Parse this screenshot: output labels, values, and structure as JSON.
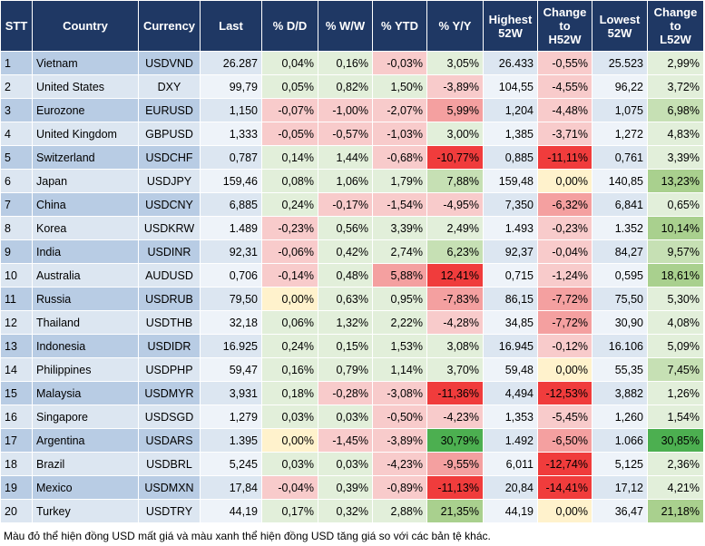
{
  "table": {
    "headers": [
      "STT",
      "Country",
      "Currency",
      "Last",
      "% D/D",
      "% W/W",
      "% YTD",
      "% Y/Y",
      "Highest\n52W",
      "Change\nto\nH52W",
      "Lowest\n52W",
      "Change\nto\nL52W"
    ],
    "rows": [
      [
        "1",
        "Vietnam",
        "USDVND",
        "26.287",
        "0,04%",
        "0,16%",
        "-0,03%",
        "3,05%",
        "26.433",
        "-0,55%",
        "25.523",
        "2,99%"
      ],
      [
        "2",
        "United States",
        "DXY",
        "99,79",
        "0,05%",
        "0,82%",
        "1,50%",
        "-3,89%",
        "104,55",
        "-4,55%",
        "96,22",
        "3,72%"
      ],
      [
        "3",
        "Eurozone",
        "EURUSD",
        "1,150",
        "-0,07%",
        "-1,00%",
        "-2,07%",
        "5,99%",
        "1,204",
        "-4,48%",
        "1,075",
        "6,98%"
      ],
      [
        "4",
        "United Kingdom",
        "GBPUSD",
        "1,333",
        "-0,05%",
        "-0,57%",
        "-1,03%",
        "3,00%",
        "1,385",
        "-3,71%",
        "1,272",
        "4,83%"
      ],
      [
        "5",
        "Switzerland",
        "USDCHF",
        "0,787",
        "0,14%",
        "1,44%",
        "-0,68%",
        "-10,77%",
        "0,885",
        "-11,11%",
        "0,761",
        "3,39%"
      ],
      [
        "6",
        "Japan",
        "USDJPY",
        "159,46",
        "0,08%",
        "1,06%",
        "1,79%",
        "7,88%",
        "159,48",
        "0,00%",
        "140,85",
        "13,23%"
      ],
      [
        "7",
        "China",
        "USDCNY",
        "6,885",
        "0,24%",
        "-0,17%",
        "-1,54%",
        "-4,95%",
        "7,350",
        "-6,32%",
        "6,841",
        "0,65%"
      ],
      [
        "8",
        "Korea",
        "USDKRW",
        "1.489",
        "-0,23%",
        "0,56%",
        "3,39%",
        "2,49%",
        "1.493",
        "-0,23%",
        "1.352",
        "10,14%"
      ],
      [
        "9",
        "India",
        "USDINR",
        "92,31",
        "-0,06%",
        "0,42%",
        "2,74%",
        "6,23%",
        "92,37",
        "-0,04%",
        "84,27",
        "9,57%"
      ],
      [
        "10",
        "Australia",
        "AUDUSD",
        "0,706",
        "-0,14%",
        "0,48%",
        "5,88%",
        "12,41%",
        "0,715",
        "-1,24%",
        "0,595",
        "18,61%"
      ],
      [
        "11",
        "Russia",
        "USDRUB",
        "79,50",
        "0,00%",
        "0,63%",
        "0,95%",
        "-7,83%",
        "86,15",
        "-7,72%",
        "75,50",
        "5,30%"
      ],
      [
        "12",
        "Thailand",
        "USDTHB",
        "32,18",
        "0,06%",
        "1,32%",
        "2,22%",
        "-4,28%",
        "34,85",
        "-7,72%",
        "30,90",
        "4,08%"
      ],
      [
        "13",
        "Indonesia",
        "USDIDR",
        "16.925",
        "0,24%",
        "0,15%",
        "1,53%",
        "3,08%",
        "16.945",
        "-0,12%",
        "16.106",
        "5,09%"
      ],
      [
        "14",
        "Philippines",
        "USDPHP",
        "59,47",
        "0,16%",
        "0,79%",
        "1,14%",
        "3,70%",
        "59,48",
        "0,00%",
        "55,35",
        "7,45%"
      ],
      [
        "15",
        "Malaysia",
        "USDMYR",
        "3,931",
        "0,18%",
        "-0,28%",
        "-3,08%",
        "-11,36%",
        "4,494",
        "-12,53%",
        "3,882",
        "1,26%"
      ],
      [
        "16",
        "Singapore",
        "USDSGD",
        "1,279",
        "0,03%",
        "0,03%",
        "-0,50%",
        "-4,23%",
        "1,353",
        "-5,45%",
        "1,260",
        "1,54%"
      ],
      [
        "17",
        "Argentina",
        "USDARS",
        "1.395",
        "0,00%",
        "-1,45%",
        "-3,89%",
        "30,79%",
        "1.492",
        "-6,50%",
        "1.066",
        "30,85%"
      ],
      [
        "18",
        "Brazil",
        "USDBRL",
        "5,245",
        "0,03%",
        "0,03%",
        "-4,23%",
        "-9,55%",
        "6,011",
        "-12,74%",
        "5,125",
        "2,36%"
      ],
      [
        "19",
        "Mexico",
        "USDMXN",
        "17,84",
        "-0,04%",
        "0,39%",
        "-0,89%",
        "-11,13%",
        "20,84",
        "-14,41%",
        "17,12",
        "4,21%"
      ],
      [
        "20",
        "Turkey",
        "USDTRY",
        "44,19",
        "0,17%",
        "0,32%",
        "2,88%",
        "21,35%",
        "44,19",
        "0,00%",
        "36,47",
        "21,18%"
      ]
    ],
    "cell_colors": [
      [
        null,
        null,
        null,
        null,
        "#e2efda",
        "#e2efda",
        "#f8cbcb",
        "#e2efda",
        null,
        "#f8cbcb",
        null,
        "#e2efda"
      ],
      [
        null,
        null,
        null,
        null,
        "#e2efda",
        "#e2efda",
        "#e2efda",
        "#f8cbcb",
        null,
        "#f8cbcb",
        null,
        "#e2efda"
      ],
      [
        null,
        null,
        null,
        null,
        "#f8cbcb",
        "#f8cbcb",
        "#f8cbcb",
        "#f4a0a0",
        null,
        "#f8cbcb",
        null,
        "#c6e0b4"
      ],
      [
        null,
        null,
        null,
        null,
        "#f8cbcb",
        "#f8cbcb",
        "#f8cbcb",
        "#e2efda",
        null,
        "#f8cbcb",
        null,
        "#e2efda"
      ],
      [
        null,
        null,
        null,
        null,
        "#e2efda",
        "#e2efda",
        "#f8cbcb",
        "#f03c3c",
        null,
        "#f03c3c",
        null,
        "#e2efda"
      ],
      [
        null,
        null,
        null,
        null,
        "#e2efda",
        "#e2efda",
        "#e2efda",
        "#c6e0b4",
        null,
        "#fff2cc",
        null,
        "#a9d08e"
      ],
      [
        null,
        null,
        null,
        null,
        "#e2efda",
        "#f8cbcb",
        "#f8cbcb",
        "#f8cbcb",
        null,
        "#f4a0a0",
        null,
        "#e2efda"
      ],
      [
        null,
        null,
        null,
        null,
        "#f8cbcb",
        "#e2efda",
        "#e2efda",
        "#e2efda",
        null,
        "#f8cbcb",
        null,
        "#a9d08e"
      ],
      [
        null,
        null,
        null,
        null,
        "#f8cbcb",
        "#e2efda",
        "#e2efda",
        "#c6e0b4",
        null,
        "#f8cbcb",
        null,
        "#c6e0b4"
      ],
      [
        null,
        null,
        null,
        null,
        "#f8cbcb",
        "#e2efda",
        "#f4a0a0",
        "#f03c3c",
        null,
        "#f8cbcb",
        null,
        "#a9d08e"
      ],
      [
        null,
        null,
        null,
        null,
        "#fff2cc",
        "#e2efda",
        "#e2efda",
        "#f4a0a0",
        null,
        "#f4a0a0",
        null,
        "#e2efda"
      ],
      [
        null,
        null,
        null,
        null,
        "#e2efda",
        "#e2efda",
        "#e2efda",
        "#f8cbcb",
        null,
        "#f4a0a0",
        null,
        "#e2efda"
      ],
      [
        null,
        null,
        null,
        null,
        "#e2efda",
        "#e2efda",
        "#e2efda",
        "#e2efda",
        null,
        "#f8cbcb",
        null,
        "#e2efda"
      ],
      [
        null,
        null,
        null,
        null,
        "#e2efda",
        "#e2efda",
        "#e2efda",
        "#e2efda",
        null,
        "#fff2cc",
        null,
        "#c6e0b4"
      ],
      [
        null,
        null,
        null,
        null,
        "#e2efda",
        "#f8cbcb",
        "#f8cbcb",
        "#f03c3c",
        null,
        "#f03c3c",
        null,
        "#e2efda"
      ],
      [
        null,
        null,
        null,
        null,
        "#e2efda",
        "#e2efda",
        "#f8cbcb",
        "#f8cbcb",
        null,
        "#f8cbcb",
        null,
        "#e2efda"
      ],
      [
        null,
        null,
        null,
        null,
        "#fff2cc",
        "#f8cbcb",
        "#f8cbcb",
        "#4caf50",
        null,
        "#f4a0a0",
        null,
        "#4caf50"
      ],
      [
        null,
        null,
        null,
        null,
        "#e2efda",
        "#e2efda",
        "#f8cbcb",
        "#f4a0a0",
        null,
        "#f03c3c",
        null,
        "#e2efda"
      ],
      [
        null,
        null,
        null,
        null,
        "#f8cbcb",
        "#e2efda",
        "#f8cbcb",
        "#f03c3c",
        null,
        "#f03c3c",
        null,
        "#e2efda"
      ],
      [
        null,
        null,
        null,
        null,
        "#e2efda",
        "#e2efda",
        "#e2efda",
        "#a9d08e",
        null,
        "#fff2cc",
        null,
        "#a9d08e"
      ]
    ]
  },
  "footnote": "Màu đỏ thể hiện đồng USD mất giá và màu xanh thể hiện đồng USD tăng giá so với các bản tệ khác."
}
